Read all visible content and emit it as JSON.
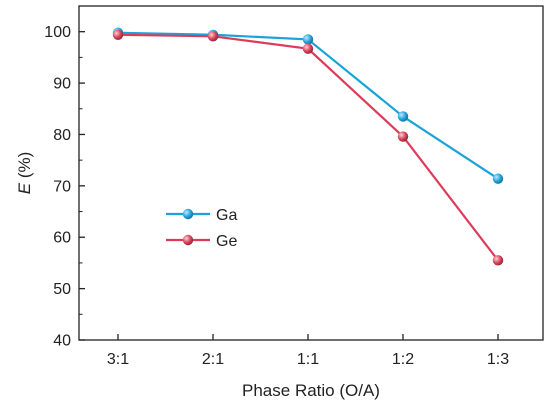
{
  "chart_data": {
    "type": "line",
    "categories": [
      "3:1",
      "2:1",
      "1:1",
      "1:2",
      "1:3"
    ],
    "series": [
      {
        "name": "Ga",
        "color": "#1aa3d9",
        "values": [
          99.8,
          99.4,
          98.5,
          83.5,
          71.4
        ]
      },
      {
        "name": "Ge",
        "color": "#dc3c5a",
        "values": [
          99.4,
          99.1,
          96.7,
          79.6,
          55.5
        ]
      }
    ],
    "xlabel": "Phase Ratio (O/A)",
    "ylabel_italic": "E",
    "ylabel_rest": " (%)",
    "ylim": [
      40,
      105
    ],
    "yticks": [
      40,
      50,
      60,
      70,
      80,
      90,
      100
    ],
    "legend": "center-left",
    "grid": false
  }
}
